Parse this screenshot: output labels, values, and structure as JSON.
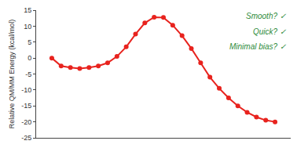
{
  "chart_data": {
    "type": "line",
    "y_label": "Relative QM/MM Energy (kcal/mol)",
    "categories": [
      null,
      null,
      null,
      null,
      null,
      null,
      null,
      null,
      null,
      null,
      null,
      null,
      null,
      null,
      null,
      null,
      null,
      null,
      null,
      null,
      null,
      null,
      null,
      null,
      null
    ],
    "values": [
      0,
      -2.5,
      -3,
      -3.3,
      -3,
      -2.5,
      -1.5,
      0.5,
      3.5,
      7.5,
      11,
      12.8,
      12.7,
      10.3,
      7,
      3,
      -1.5,
      -6,
      -9.5,
      -12.5,
      -15,
      -17,
      -18.5,
      -19.5,
      -20
    ],
    "color": "#e8231e",
    "marker": "circle",
    "ylim": [
      -25,
      15
    ],
    "yticks": [
      -25,
      -20,
      -15,
      -10,
      -5,
      0,
      5,
      10,
      15
    ],
    "grid": false,
    "tick_labels": "y",
    "annotations": [
      "Smooth? ✓",
      "Quick? ✓",
      "Minimal bias? ✓"
    ]
  }
}
